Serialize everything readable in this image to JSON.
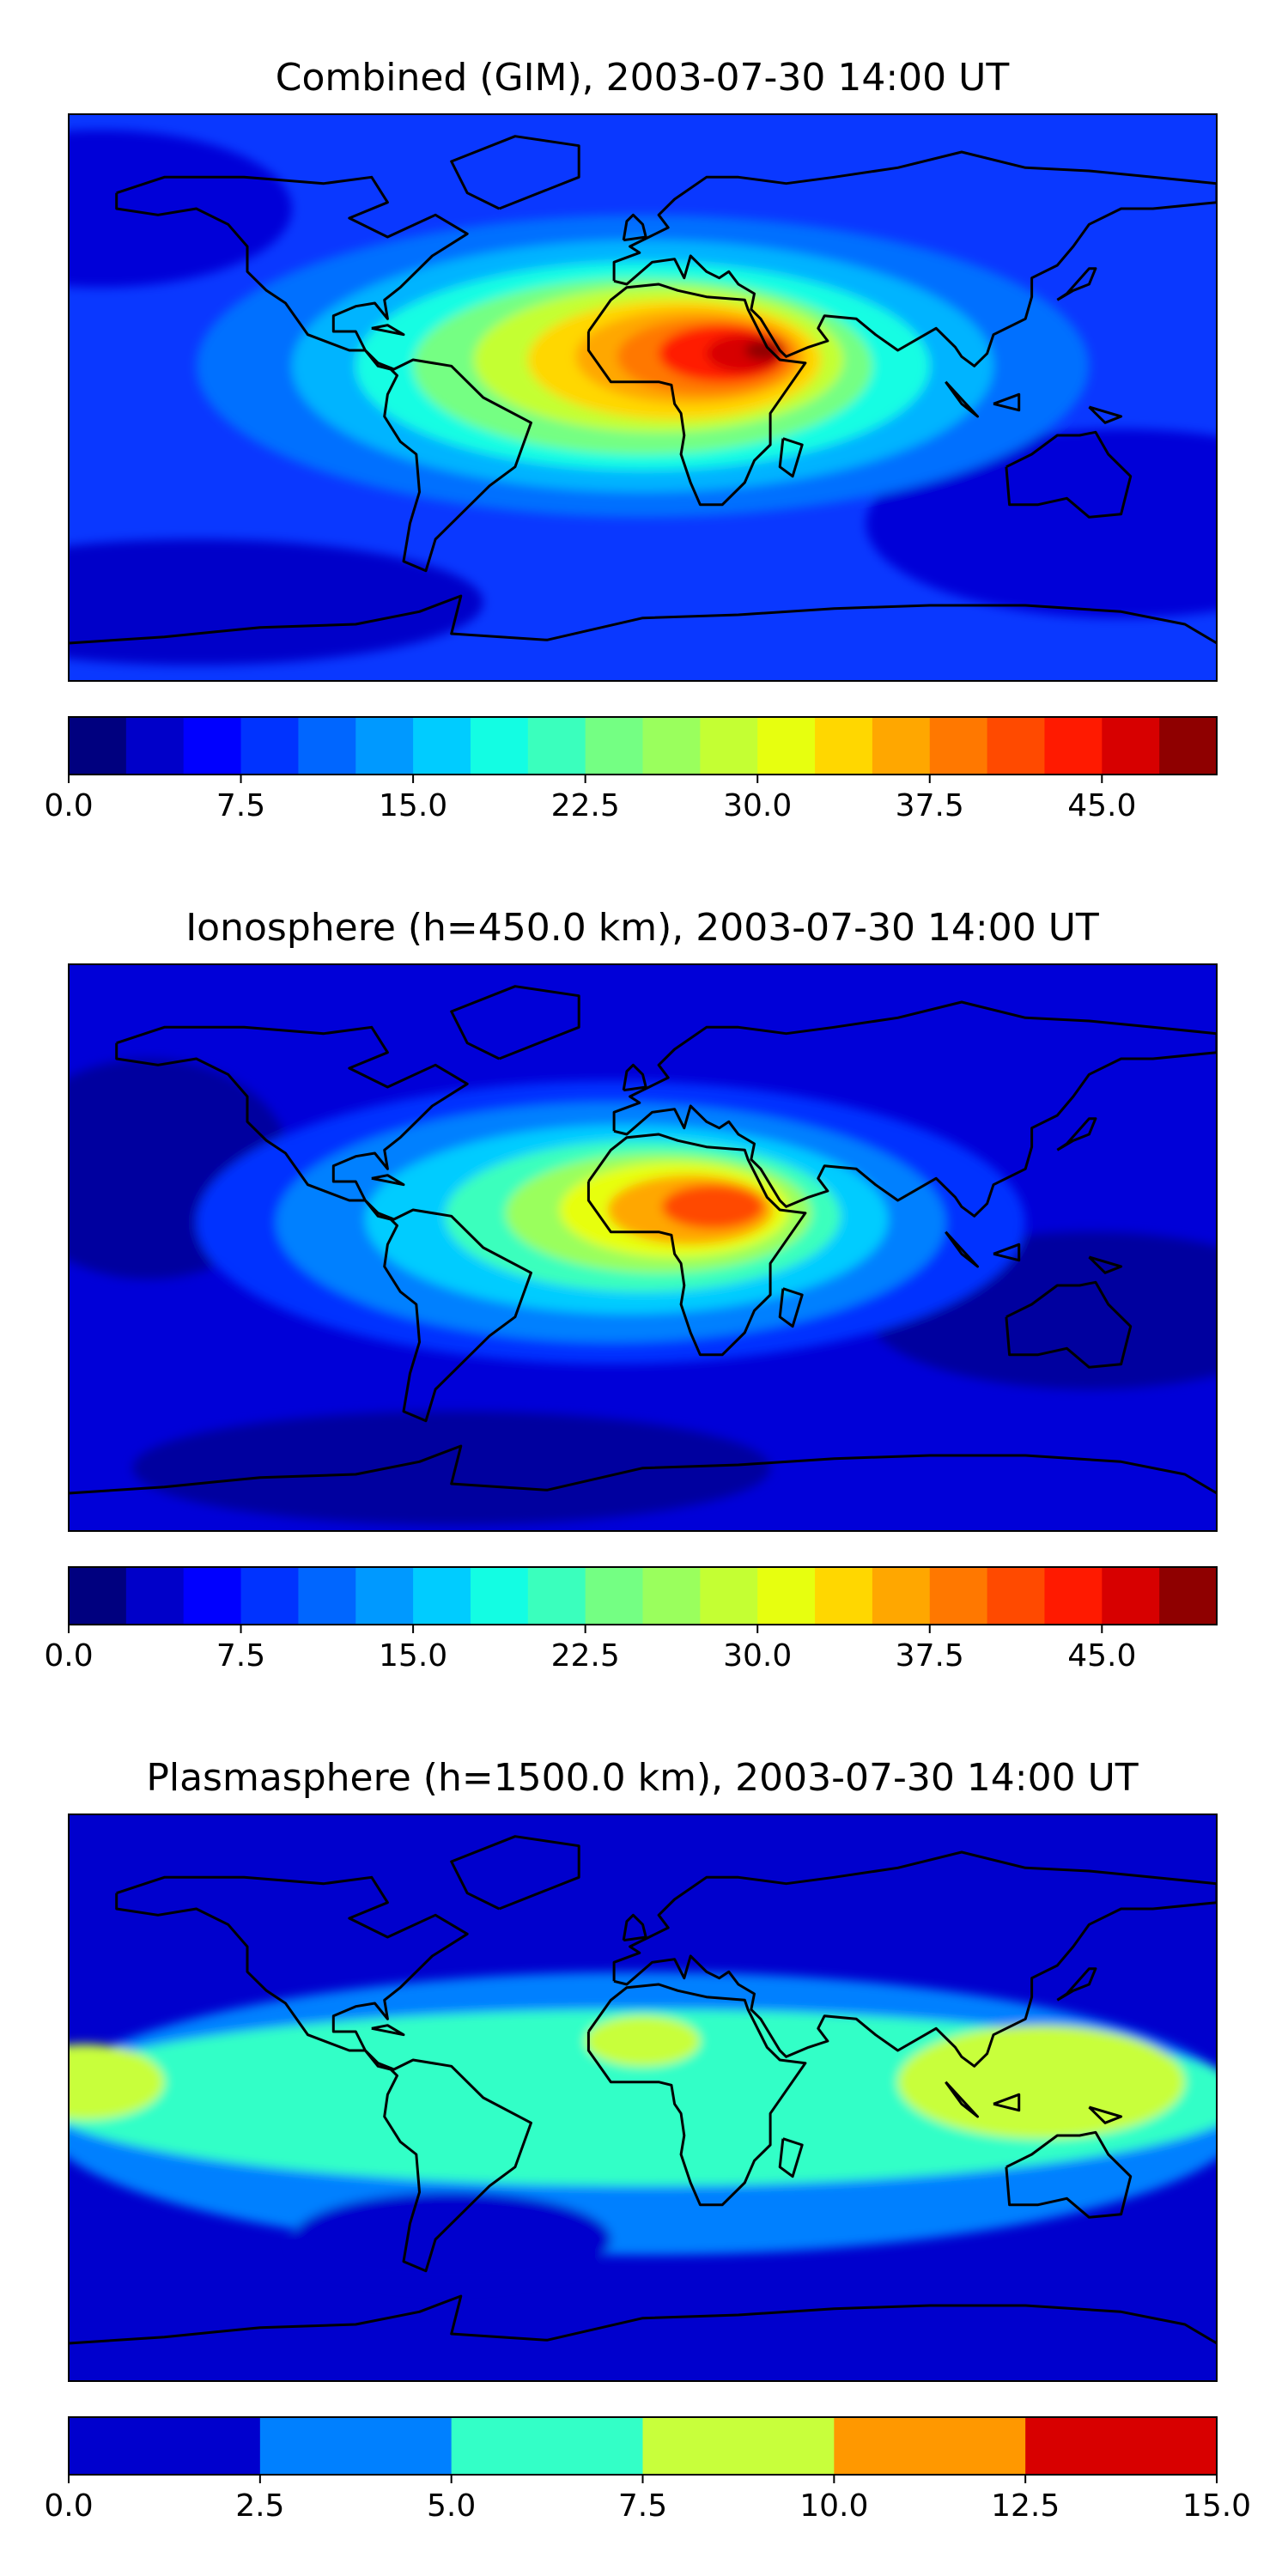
{
  "panels": [
    {
      "title": "Combined (GIM), 2003-07-30 14:00 UT",
      "colorbar": {
        "min": 0,
        "max": 50,
        "ticks": [
          "0.0",
          "7.5",
          "15.0",
          "22.5",
          "30.0",
          "37.5",
          "45.0"
        ],
        "tick_values": [
          0,
          7.5,
          15,
          22.5,
          30,
          37.5,
          45
        ],
        "colors": [
          "#00007f",
          "#0000c9",
          "#0000ff",
          "#0033ff",
          "#0066ff",
          "#0099ff",
          "#00ccff",
          "#13fde3",
          "#3affbd",
          "#74ff83",
          "#9aff5d",
          "#c4ff33",
          "#e7ff0f",
          "#ffd700",
          "#ffa700",
          "#ff7800",
          "#ff4a00",
          "#ff1a00",
          "#d70000",
          "#8f0000"
        ]
      },
      "field": {
        "background": "#0a38ff",
        "blobs": [
          {
            "lon": -170,
            "lat": 60,
            "rx": 60,
            "ry": 25,
            "color": "#0000d8"
          },
          {
            "lon": 150,
            "lat": -40,
            "rx": 80,
            "ry": 30,
            "color": "#0000d8"
          },
          {
            "lon": -140,
            "lat": -65,
            "rx": 90,
            "ry": 20,
            "color": "#0000c9"
          },
          {
            "lon": 0,
            "lat": 10,
            "rx": 140,
            "ry": 48,
            "color": "#0070ff"
          },
          {
            "lon": 0,
            "lat": 10,
            "rx": 110,
            "ry": 40,
            "color": "#00b4ff"
          },
          {
            "lon": 0,
            "lat": 10,
            "rx": 90,
            "ry": 33,
            "color": "#13fde3"
          },
          {
            "lon": 0,
            "lat": 10,
            "rx": 72,
            "ry": 28,
            "color": "#74ff83"
          },
          {
            "lon": 5,
            "lat": 12,
            "rx": 58,
            "ry": 23,
            "color": "#c4ff33"
          },
          {
            "lon": 10,
            "lat": 12,
            "rx": 46,
            "ry": 19,
            "color": "#ffd700"
          },
          {
            "lon": 15,
            "lat": 13,
            "rx": 36,
            "ry": 15,
            "color": "#ffa700"
          },
          {
            "lon": 20,
            "lat": 13,
            "rx": 28,
            "ry": 12,
            "color": "#ff7800"
          },
          {
            "lon": 25,
            "lat": 14,
            "rx": 20,
            "ry": 9,
            "color": "#ff1a00"
          },
          {
            "lon": 32,
            "lat": 14,
            "rx": 12,
            "ry": 6,
            "color": "#d70000"
          },
          {
            "lon": 38,
            "lat": 15,
            "rx": 6,
            "ry": 3,
            "color": "#8f0000"
          }
        ]
      }
    },
    {
      "title": "Ionosphere  (h=450.0 km), 2003-07-30 14:00 UT",
      "colorbar": {
        "min": 0,
        "max": 50,
        "ticks": [
          "0.0",
          "7.5",
          "15.0",
          "22.5",
          "30.0",
          "37.5",
          "45.0"
        ],
        "tick_values": [
          0,
          7.5,
          15,
          22.5,
          30,
          37.5,
          45
        ],
        "colors": [
          "#00007f",
          "#0000c9",
          "#0000ff",
          "#0033ff",
          "#0066ff",
          "#0099ff",
          "#00ccff",
          "#13fde3",
          "#3affbd",
          "#74ff83",
          "#9aff5d",
          "#c4ff33",
          "#e7ff0f",
          "#ffd700",
          "#ffa700",
          "#ff7800",
          "#ff4a00",
          "#ff1a00",
          "#d70000",
          "#8f0000"
        ]
      },
      "field": {
        "background": "#0000d8",
        "blobs": [
          {
            "lon": -155,
            "lat": 25,
            "rx": 45,
            "ry": 35,
            "color": "#00009f"
          },
          {
            "lon": 140,
            "lat": -20,
            "rx": 70,
            "ry": 25,
            "color": "#00009f"
          },
          {
            "lon": -60,
            "lat": -70,
            "rx": 100,
            "ry": 18,
            "color": "#00009f"
          },
          {
            "lon": -10,
            "lat": 8,
            "rx": 130,
            "ry": 45,
            "color": "#0033ff"
          },
          {
            "lon": -10,
            "lat": 8,
            "rx": 105,
            "ry": 38,
            "color": "#0080ff"
          },
          {
            "lon": -5,
            "lat": 9,
            "rx": 82,
            "ry": 30,
            "color": "#00ccff"
          },
          {
            "lon": 0,
            "lat": 10,
            "rx": 62,
            "ry": 24,
            "color": "#3affbd"
          },
          {
            "lon": 5,
            "lat": 11,
            "rx": 48,
            "ry": 19,
            "color": "#9aff5d"
          },
          {
            "lon": 10,
            "lat": 12,
            "rx": 36,
            "ry": 15,
            "color": "#e7ff0f"
          },
          {
            "lon": 15,
            "lat": 12,
            "rx": 26,
            "ry": 11,
            "color": "#ffa700"
          },
          {
            "lon": 22,
            "lat": 13,
            "rx": 16,
            "ry": 7,
            "color": "#ff4a00"
          }
        ]
      }
    },
    {
      "title": "Plasmasphere (h=1500.0 km), 2003-07-30 14:00 UT",
      "colorbar": {
        "min": 0,
        "max": 15,
        "ticks": [
          "0.0",
          "2.5",
          "5.0",
          "7.5",
          "10.0",
          "12.5",
          "15.0"
        ],
        "tick_values": [
          0,
          2.5,
          5,
          7.5,
          10,
          12.5,
          15
        ],
        "colors": [
          "#0000cd",
          "#0080ff",
          "#33ffc7",
          "#c8ff3b",
          "#ff9800",
          "#d80000"
        ]
      },
      "field": {
        "background": "#0000cd",
        "blobs": [
          {
            "lon": 0,
            "lat": -5,
            "rx": 190,
            "ry": 45,
            "color": "#0080ff"
          },
          {
            "lon": 0,
            "lat": 0,
            "rx": 190,
            "ry": 28,
            "color": "#33ffc7"
          },
          {
            "lon": 125,
            "lat": 5,
            "rx": 45,
            "ry": 18,
            "color": "#c8ff3b"
          },
          {
            "lon": -175,
            "lat": 5,
            "rx": 25,
            "ry": 12,
            "color": "#c8ff3b"
          },
          {
            "lon": 0,
            "lat": 18,
            "rx": 18,
            "ry": 8,
            "color": "#c8ff3b"
          },
          {
            "lon": -60,
            "lat": -45,
            "rx": 50,
            "ry": 15,
            "color": "#0000cd"
          }
        ]
      }
    }
  ],
  "coastlines": [
    [
      [
        -165,
        65
      ],
      [
        -150,
        70
      ],
      [
        -125,
        70
      ],
      [
        -100,
        68
      ],
      [
        -85,
        70
      ],
      [
        -80,
        62
      ],
      [
        -92,
        57
      ],
      [
        -80,
        51
      ],
      [
        -65,
        58
      ],
      [
        -55,
        52
      ],
      [
        -66,
        45
      ],
      [
        -70,
        41
      ],
      [
        -76,
        35
      ],
      [
        -81,
        31
      ],
      [
        -80,
        25
      ],
      [
        -84,
        30
      ],
      [
        -90,
        29
      ],
      [
        -97,
        26
      ],
      [
        -97,
        21
      ],
      [
        -90,
        21
      ],
      [
        -87,
        15
      ],
      [
        -83,
        10
      ],
      [
        -79,
        9
      ],
      [
        -77,
        7
      ],
      [
        -80,
        1
      ],
      [
        -81,
        -6
      ],
      [
        -76,
        -14
      ],
      [
        -71,
        -18
      ],
      [
        -70,
        -30
      ],
      [
        -73,
        -40
      ],
      [
        -75,
        -52
      ],
      [
        -68,
        -55
      ],
      [
        -65,
        -45
      ],
      [
        -57,
        -37
      ],
      [
        -48,
        -28
      ],
      [
        -40,
        -22
      ],
      [
        -35,
        -8
      ],
      [
        -50,
        0
      ],
      [
        -60,
        10
      ],
      [
        -72,
        12
      ],
      [
        -78,
        9
      ],
      [
        -83,
        11
      ],
      [
        -87,
        15
      ],
      [
        -92,
        15
      ],
      [
        -105,
        20
      ],
      [
        -112,
        30
      ],
      [
        -118,
        34
      ],
      [
        -124,
        40
      ],
      [
        -124,
        48
      ],
      [
        -130,
        55
      ],
      [
        -140,
        60
      ],
      [
        -152,
        58
      ],
      [
        -165,
        60
      ],
      [
        -165,
        65
      ]
    ],
    [
      [
        -17,
        21
      ],
      [
        -17,
        15
      ],
      [
        -10,
        5
      ],
      [
        5,
        5
      ],
      [
        9,
        4
      ],
      [
        10,
        -2
      ],
      [
        12,
        -5
      ],
      [
        13,
        -12
      ],
      [
        12,
        -18
      ],
      [
        15,
        -27
      ],
      [
        18,
        -34
      ],
      [
        25,
        -34
      ],
      [
        32,
        -27
      ],
      [
        35,
        -20
      ],
      [
        40,
        -15
      ],
      [
        40,
        -5
      ],
      [
        51,
        11
      ],
      [
        43,
        12
      ],
      [
        39,
        16
      ],
      [
        33,
        28
      ],
      [
        32,
        31
      ],
      [
        20,
        32
      ],
      [
        11,
        34
      ],
      [
        5,
        36
      ],
      [
        -5,
        35
      ],
      [
        -10,
        31
      ],
      [
        -17,
        21
      ]
    ],
    [
      [
        -9,
        37
      ],
      [
        -9,
        43
      ],
      [
        -1,
        46
      ],
      [
        -4,
        48
      ],
      [
        2,
        51
      ],
      [
        8,
        54
      ],
      [
        5,
        58
      ],
      [
        10,
        63
      ],
      [
        20,
        70
      ],
      [
        30,
        70
      ],
      [
        45,
        68
      ],
      [
        60,
        70
      ],
      [
        80,
        73
      ],
      [
        100,
        78
      ],
      [
        120,
        73
      ],
      [
        140,
        72
      ],
      [
        160,
        70
      ],
      [
        180,
        68
      ],
      [
        180,
        62
      ],
      [
        160,
        60
      ],
      [
        150,
        60
      ],
      [
        140,
        55
      ],
      [
        135,
        48
      ],
      [
        130,
        42
      ],
      [
        122,
        38
      ],
      [
        122,
        32
      ],
      [
        120,
        25
      ],
      [
        110,
        20
      ],
      [
        108,
        14
      ],
      [
        104,
        10
      ],
      [
        100,
        13
      ],
      [
        98,
        16
      ],
      [
        92,
        22
      ],
      [
        80,
        15
      ],
      [
        73,
        20
      ],
      [
        67,
        25
      ],
      [
        57,
        26
      ],
      [
        55,
        22
      ],
      [
        58,
        18
      ],
      [
        52,
        16
      ],
      [
        45,
        13
      ],
      [
        43,
        15
      ],
      [
        37,
        25
      ],
      [
        34,
        28
      ],
      [
        35,
        33
      ],
      [
        30,
        36
      ],
      [
        27,
        40
      ],
      [
        24,
        38
      ],
      [
        20,
        40
      ],
      [
        15,
        45
      ],
      [
        13,
        38
      ],
      [
        10,
        44
      ],
      [
        3,
        43
      ],
      [
        -5,
        36
      ],
      [
        -9,
        37
      ]
    ],
    [
      [
        114,
        -22
      ],
      [
        122,
        -18
      ],
      [
        130,
        -12
      ],
      [
        137,
        -12
      ],
      [
        142,
        -11
      ],
      [
        146,
        -18
      ],
      [
        153,
        -25
      ],
      [
        150,
        -37
      ],
      [
        140,
        -38
      ],
      [
        133,
        -32
      ],
      [
        124,
        -34
      ],
      [
        115,
        -34
      ],
      [
        114,
        -22
      ]
    ],
    [
      [
        -180,
        -78
      ],
      [
        -150,
        -76
      ],
      [
        -120,
        -73
      ],
      [
        -90,
        -72
      ],
      [
        -70,
        -68
      ],
      [
        -57,
        -63
      ],
      [
        -60,
        -75
      ],
      [
        -30,
        -77
      ],
      [
        0,
        -70
      ],
      [
        30,
        -69
      ],
      [
        60,
        -67
      ],
      [
        90,
        -66
      ],
      [
        120,
        -66
      ],
      [
        150,
        -68
      ],
      [
        170,
        -72
      ],
      [
        180,
        -78
      ]
    ],
    [
      [
        -45,
        60
      ],
      [
        -55,
        65
      ],
      [
        -60,
        75
      ],
      [
        -40,
        83
      ],
      [
        -20,
        80
      ],
      [
        -20,
        70
      ],
      [
        -45,
        60
      ]
    ],
    [
      [
        -6,
        50
      ],
      [
        1,
        51
      ],
      [
        0,
        55
      ],
      [
        -3,
        58
      ],
      [
        -5,
        56
      ],
      [
        -6,
        50
      ]
    ],
    [
      [
        130,
        31
      ],
      [
        135,
        34
      ],
      [
        140,
        36
      ],
      [
        142,
        41
      ],
      [
        140,
        41
      ],
      [
        133,
        33
      ],
      [
        130,
        31
      ]
    ],
    [
      [
        95,
        5
      ],
      [
        105,
        -6
      ],
      [
        100,
        -2
      ],
      [
        95,
        5
      ]
    ],
    [
      [
        110,
        -2
      ],
      [
        118,
        1
      ],
      [
        118,
        -4
      ],
      [
        110,
        -2
      ]
    ],
    [
      [
        140,
        -3
      ],
      [
        150,
        -6
      ],
      [
        145,
        -8
      ],
      [
        140,
        -3
      ]
    ],
    [
      [
        44,
        -13
      ],
      [
        50,
        -15
      ],
      [
        47,
        -25
      ],
      [
        43,
        -22
      ],
      [
        44,
        -13
      ]
    ],
    [
      [
        -85,
        22
      ],
      [
        -75,
        20
      ],
      [
        -80,
        23
      ],
      [
        -85,
        22
      ]
    ]
  ]
}
